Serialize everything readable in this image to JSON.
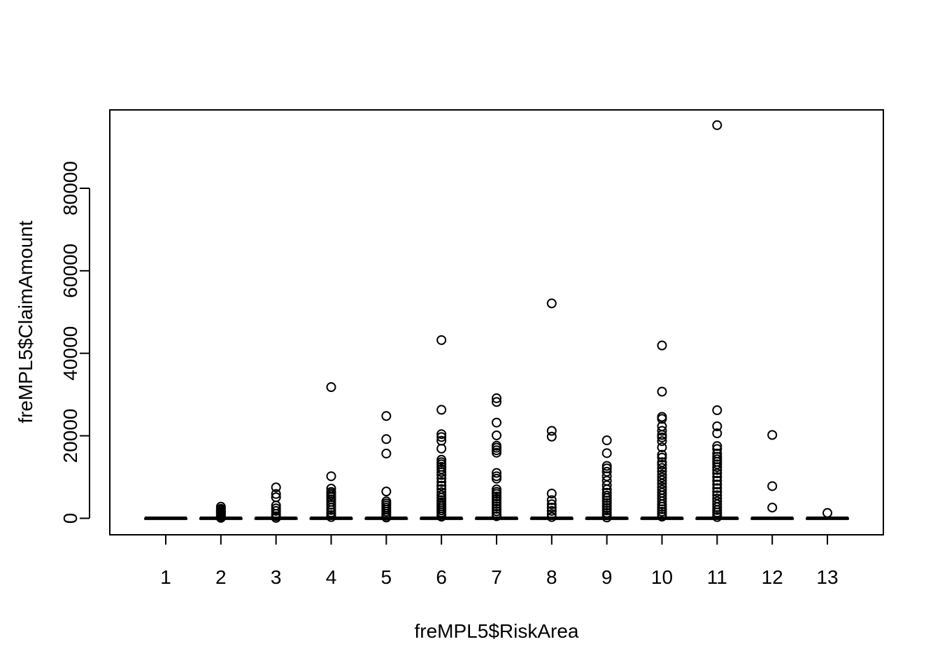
{
  "chart_data": {
    "type": "box",
    "title": "",
    "xlabel": "freMPL5$RiskArea",
    "ylabel": "freMPL5$ClaimAmount",
    "categories": [
      "1",
      "2",
      "3",
      "4",
      "5",
      "6",
      "7",
      "8",
      "9",
      "10",
      "11",
      "12",
      "13"
    ],
    "y_ticks": [
      0,
      20000,
      40000,
      60000,
      80000
    ],
    "ylim": [
      -4000,
      99000
    ],
    "grid": false,
    "boxes": [
      {
        "category": "1",
        "median": 0,
        "q1": 0,
        "q3": 0,
        "whisker_low": 0,
        "whisker_high": 0,
        "outliers": []
      },
      {
        "category": "2",
        "median": 0,
        "q1": 0,
        "q3": 0,
        "whisker_low": 0,
        "whisker_high": 0,
        "outliers": [
          2800,
          2300,
          2000,
          1700,
          1400,
          1100,
          800,
          500,
          300,
          100
        ]
      },
      {
        "category": "3",
        "median": 0,
        "q1": 0,
        "q3": 0,
        "whisker_low": 0,
        "whisker_high": 0,
        "outliers": [
          7500,
          5900,
          5100,
          3100,
          2400,
          1800,
          1100,
          500,
          100
        ]
      },
      {
        "category": "4",
        "median": 0,
        "q1": 0,
        "q3": 0,
        "whisker_low": 0,
        "whisker_high": 0,
        "outliers": [
          31800,
          10200,
          7200,
          6400,
          6000,
          5600,
          5100,
          4600,
          4000,
          3300,
          2600,
          2000,
          1400,
          800,
          300
        ]
      },
      {
        "category": "5",
        "median": 0,
        "q1": 0,
        "q3": 0,
        "whisker_low": 0,
        "whisker_high": 0,
        "outliers": [
          24800,
          19200,
          15700,
          6500,
          4100,
          3600,
          3100,
          2600,
          2100,
          1600,
          1100,
          600,
          200
        ]
      },
      {
        "category": "6",
        "median": 0,
        "q1": 0,
        "q3": 0,
        "whisker_low": 0,
        "whisker_high": 0,
        "outliers": [
          43200,
          26300,
          20400,
          19700,
          18800,
          16900,
          14200,
          13600,
          13100,
          12500,
          11900,
          11200,
          10500,
          9700,
          8800,
          7900,
          7100,
          6300,
          5600,
          5000,
          4400,
          3900,
          3400,
          2900,
          2400,
          1900,
          1400,
          900,
          400
        ]
      },
      {
        "category": "7",
        "median": 0,
        "q1": 0,
        "q3": 0,
        "whisker_low": 0,
        "whisker_high": 0,
        "outliers": [
          29100,
          28200,
          23200,
          20100,
          17600,
          17100,
          16500,
          15900,
          11000,
          10200,
          9600,
          7000,
          6400,
          5900,
          5300,
          4700,
          4100,
          3500,
          2900,
          2300,
          1700,
          1100,
          500
        ]
      },
      {
        "category": "8",
        "median": 0,
        "q1": 0,
        "q3": 0,
        "whisker_low": 0,
        "whisker_high": 0,
        "outliers": [
          52100,
          21200,
          19800,
          6000,
          4400,
          3400,
          2600,
          1800,
          1000,
          300
        ]
      },
      {
        "category": "9",
        "median": 0,
        "q1": 0,
        "q3": 0,
        "whisker_low": 0,
        "whisker_high": 0,
        "outliers": [
          18900,
          15800,
          12700,
          12100,
          11300,
          10200,
          9100,
          8000,
          7000,
          6200,
          5500,
          4900,
          4300,
          3700,
          3100,
          2500,
          1900,
          1300,
          700,
          200
        ]
      },
      {
        "category": "10",
        "median": 0,
        "q1": 0,
        "q3": 0,
        "whisker_low": 0,
        "whisker_high": 0,
        "outliers": [
          41900,
          30700,
          24600,
          24100,
          22300,
          21200,
          20200,
          19600,
          18700,
          17200,
          15400,
          14700,
          13600,
          13000,
          12200,
          11400,
          10600,
          9900,
          9200,
          8400,
          7600,
          6900,
          6200,
          5500,
          4800,
          4100,
          3400,
          2800,
          2200,
          1600,
          1000,
          400
        ]
      },
      {
        "category": "11",
        "median": 0,
        "q1": 0,
        "q3": 0,
        "whisker_low": 0,
        "whisker_high": 0,
        "outliers": [
          95300,
          26200,
          22300,
          20600,
          17500,
          16800,
          15700,
          14900,
          14300,
          13700,
          13100,
          12400,
          11700,
          10900,
          10000,
          9100,
          8200,
          7300,
          6400,
          5600,
          4800,
          4100,
          3400,
          2700,
          2000,
          1400,
          800,
          300
        ]
      },
      {
        "category": "12",
        "median": 0,
        "q1": 0,
        "q3": 0,
        "whisker_low": 0,
        "whisker_high": 0,
        "outliers": [
          20200,
          7800,
          2600
        ]
      },
      {
        "category": "13",
        "median": 0,
        "q1": 0,
        "q3": 0,
        "whisker_low": 0,
        "whisker_high": 0,
        "outliers": [
          1300
        ]
      }
    ]
  }
}
